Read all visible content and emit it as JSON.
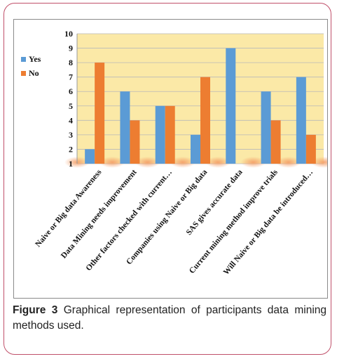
{
  "caption": {
    "label": "Figure 3",
    "text": "Graphical representation of participants data mining methods used."
  },
  "colors": {
    "yes": "#5b9bd5",
    "no": "#ed7d31",
    "plot_bg": "#fbe9a7",
    "frame": "#c0506a"
  },
  "chart_data": {
    "type": "bar",
    "categories": [
      "Naive or Big data Awareness",
      "Data Mining needs improvement",
      "Other factors checked with current…",
      "Companies using Naive or Big data",
      "SAS gives accurate data",
      "Current mining method improve trials",
      "Will Naive or Big data be introduced…"
    ],
    "series": [
      {
        "name": "Yes",
        "values": [
          2,
          6,
          5,
          3,
          9,
          6,
          7
        ]
      },
      {
        "name": "No",
        "values": [
          8,
          4,
          5,
          7,
          1,
          4,
          3
        ]
      }
    ],
    "ylim": [
      1,
      10
    ],
    "yticks": [
      1,
      2,
      3,
      4,
      5,
      6,
      7,
      8,
      9,
      10
    ],
    "legend": "left",
    "grid": true
  }
}
